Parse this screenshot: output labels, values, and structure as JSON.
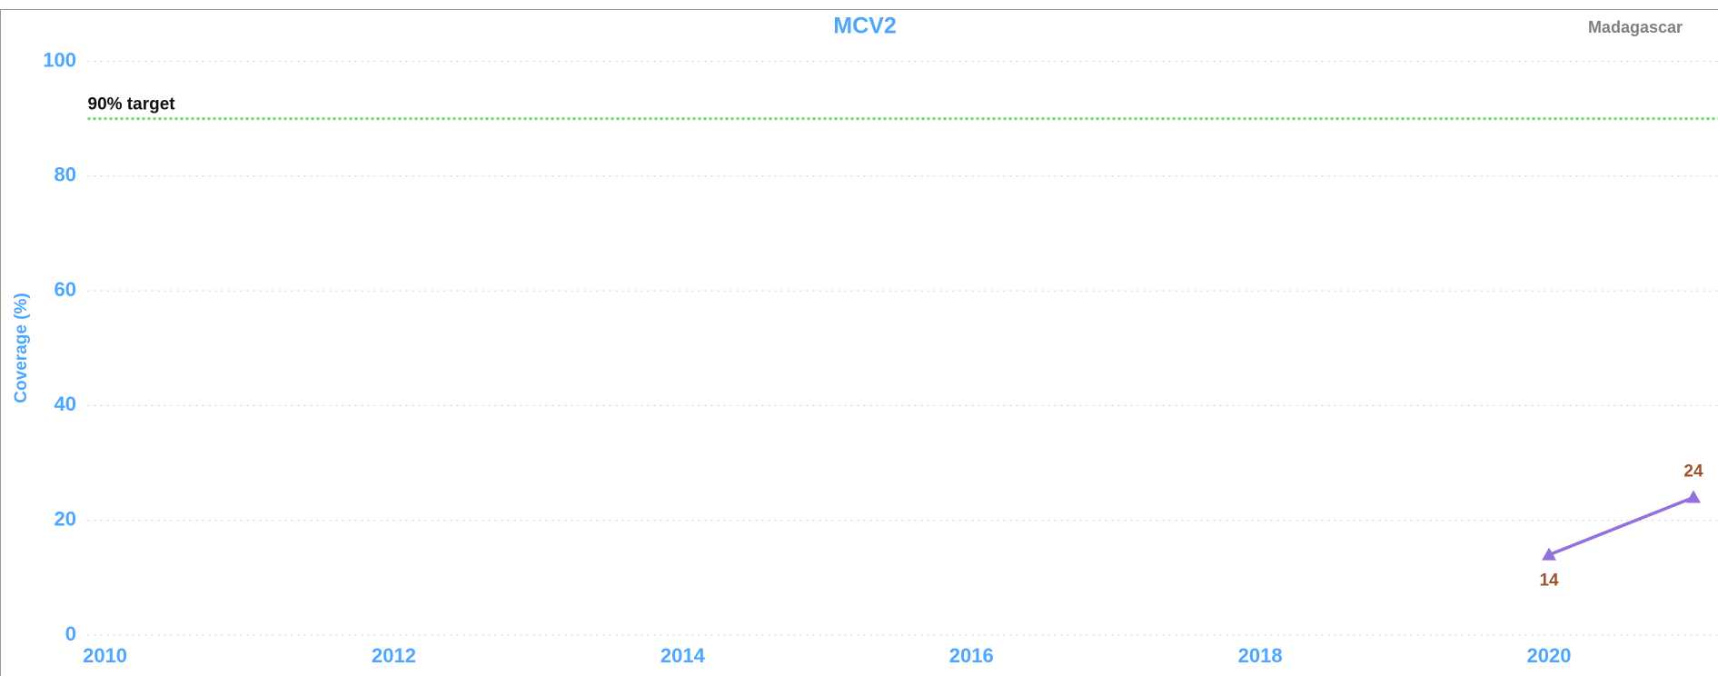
{
  "chart_data": {
    "type": "line",
    "title": "MCV2",
    "annotation": "Madagascar",
    "ylabel": "Coverage (%)",
    "x": [
      2020,
      2021
    ],
    "series": [
      {
        "name": "MCV2",
        "color": "#9370db",
        "label_color": "#a0522d",
        "values": [
          14,
          24
        ]
      }
    ],
    "target": {
      "value": 90,
      "label": "90% target",
      "color": "#66dd66"
    },
    "xlim": [
      2009.88,
      2021.17
    ],
    "xticks": [
      2010,
      2012,
      2014,
      2016,
      2018,
      2020
    ],
    "ylim": [
      0,
      100
    ],
    "yticks": [
      0,
      20,
      40,
      60,
      80,
      100
    ],
    "grid": true
  }
}
